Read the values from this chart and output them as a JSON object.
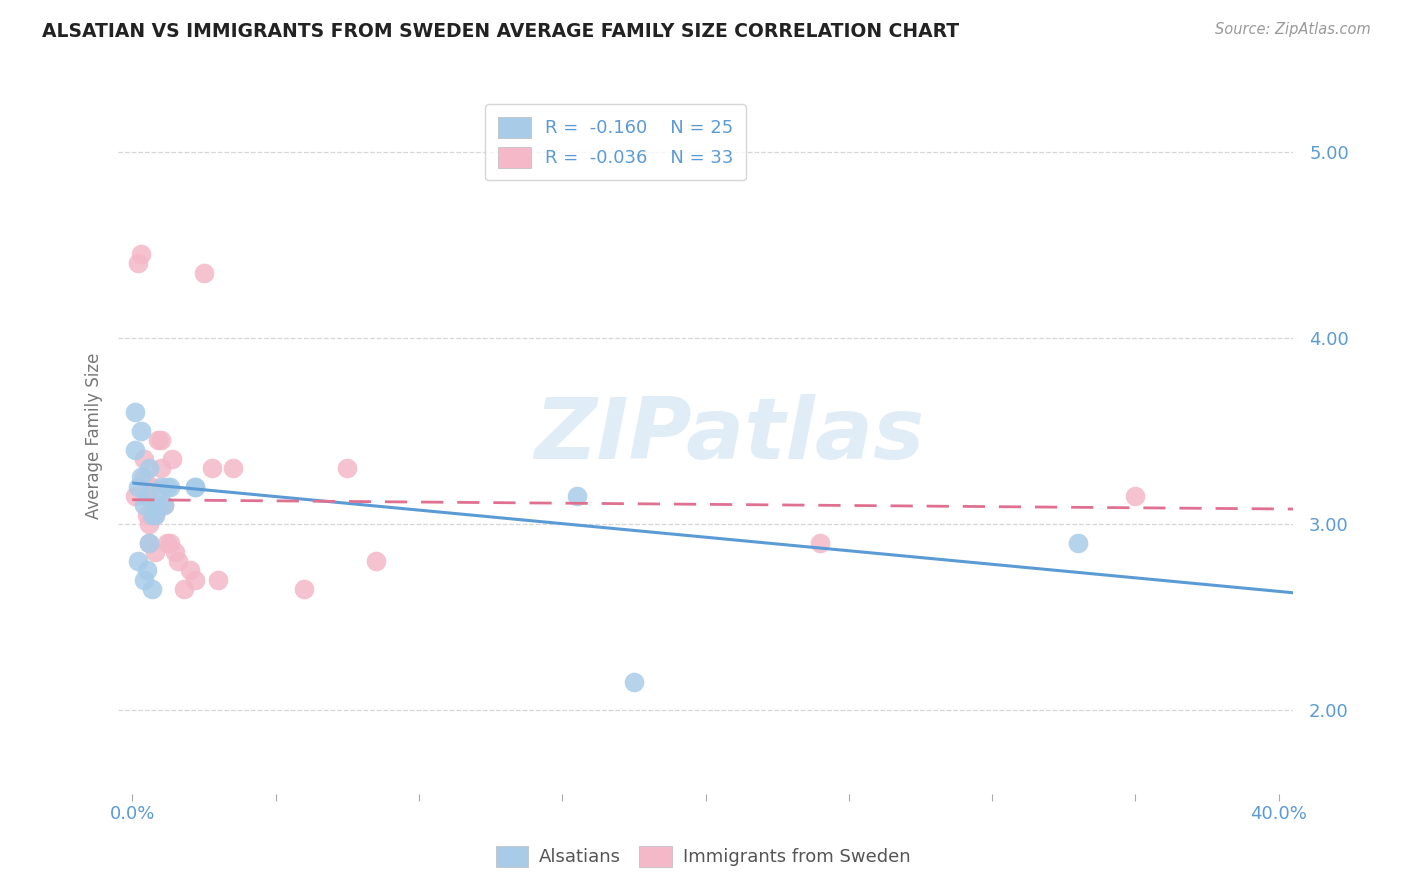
{
  "title": "ALSATIAN VS IMMIGRANTS FROM SWEDEN AVERAGE FAMILY SIZE CORRELATION CHART",
  "source": "Source: ZipAtlas.com",
  "ylabel": "Average Family Size",
  "yticks": [
    2.0,
    3.0,
    4.0,
    5.0
  ],
  "xlim": [
    -0.005,
    0.405
  ],
  "ylim": [
    1.55,
    5.4
  ],
  "watermark": "ZIPatlas",
  "legend_r_blue": "-0.160",
  "legend_n_blue": "25",
  "legend_r_pink": "-0.036",
  "legend_n_pink": "33",
  "blue_color": "#a8cce8",
  "pink_color": "#f4b8c8",
  "blue_line_color": "#5b9bd5",
  "pink_line_color": "#e07090",
  "blue_label": "Alsatians",
  "pink_label": "Immigrants from Sweden",
  "blue_scatter_x": [
    0.001,
    0.001,
    0.002,
    0.002,
    0.003,
    0.003,
    0.004,
    0.004,
    0.005,
    0.005,
    0.006,
    0.006,
    0.007,
    0.007,
    0.008,
    0.009,
    0.01,
    0.011,
    0.012,
    0.013,
    0.022,
    0.022,
    0.155,
    0.175,
    0.33
  ],
  "blue_scatter_y": [
    3.4,
    3.6,
    3.2,
    2.8,
    3.25,
    3.5,
    3.1,
    2.7,
    3.15,
    2.75,
    3.3,
    2.9,
    3.05,
    2.65,
    3.05,
    3.1,
    3.2,
    3.1,
    3.2,
    3.2,
    3.2,
    3.2,
    3.15,
    2.15,
    2.9
  ],
  "pink_scatter_x": [
    0.001,
    0.002,
    0.003,
    0.004,
    0.004,
    0.005,
    0.005,
    0.006,
    0.006,
    0.007,
    0.008,
    0.008,
    0.009,
    0.01,
    0.01,
    0.011,
    0.012,
    0.013,
    0.014,
    0.015,
    0.016,
    0.018,
    0.02,
    0.022,
    0.025,
    0.028,
    0.03,
    0.035,
    0.06,
    0.075,
    0.085,
    0.24,
    0.35
  ],
  "pink_scatter_y": [
    3.15,
    4.4,
    4.45,
    3.25,
    3.35,
    3.15,
    3.05,
    3.0,
    2.9,
    3.2,
    3.05,
    2.85,
    3.45,
    3.45,
    3.3,
    3.1,
    2.9,
    2.9,
    3.35,
    2.85,
    2.8,
    2.65,
    2.75,
    2.7,
    4.35,
    3.3,
    2.7,
    3.3,
    2.65,
    3.3,
    2.8,
    2.9,
    3.15
  ],
  "blue_trendline_x": [
    0.0,
    0.405
  ],
  "blue_trendline_y": [
    3.22,
    2.63
  ],
  "pink_trendline_x": [
    0.0,
    0.405
  ],
  "pink_trendline_y": [
    3.13,
    3.08
  ],
  "grid_color": "#cccccc",
  "background_color": "#ffffff",
  "x_minor_ticks": [
    0.0,
    0.05,
    0.1,
    0.15,
    0.2,
    0.25,
    0.3,
    0.35,
    0.4
  ]
}
